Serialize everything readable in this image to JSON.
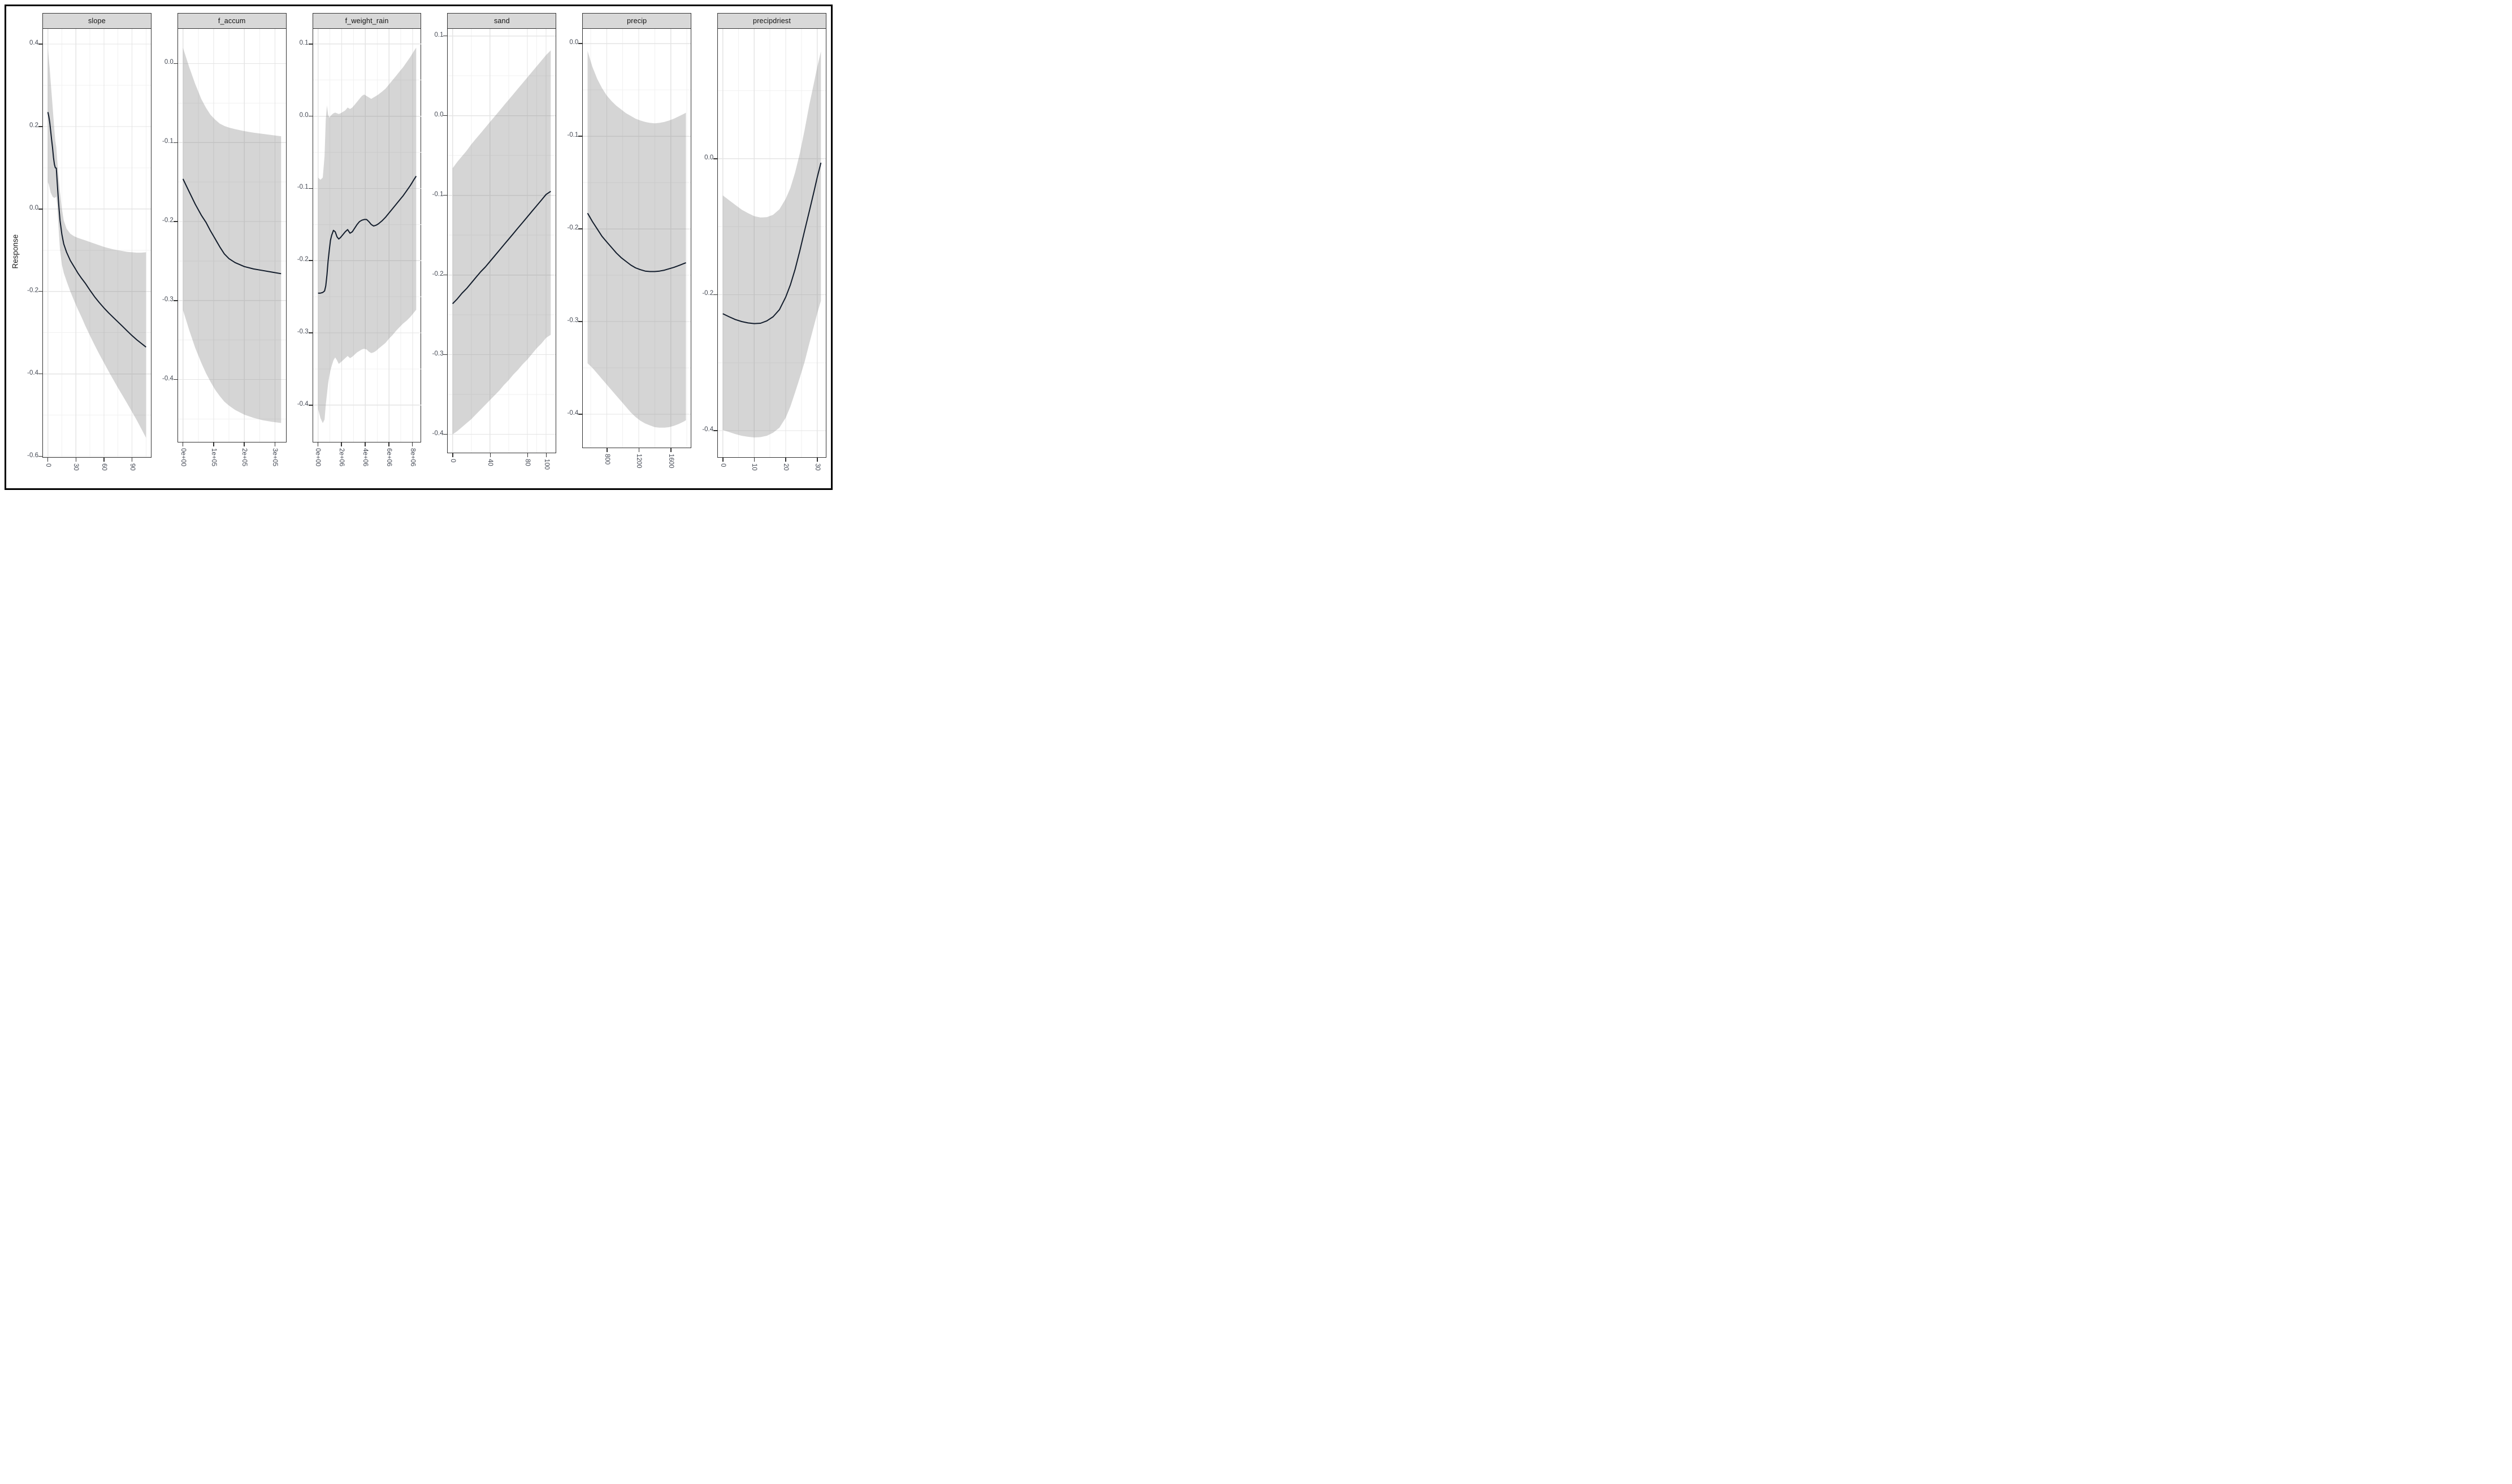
{
  "figure": {
    "ylab": "Response"
  },
  "chart_data": {
    "type": "line",
    "title": "",
    "xlabel": "",
    "ylabel": "Response",
    "legend": "none",
    "grid": "on",
    "style": {
      "line_color": "#121c2b",
      "ribbon_fill": "rgba(128,128,128,0.33)",
      "grid_major": "#e4e4e4",
      "grid_minor": "#f1f1f1",
      "strip_bg": "#d8d8d8",
      "panel_border": "#333333",
      "axis_text": "#454a55",
      "outer_border": "#000000"
    },
    "panels": [
      {
        "label": "slope",
        "xdomain": [
          -5.25,
          110.25
        ],
        "ydomain": [
          -0.602,
          0.437
        ],
        "xticks": {
          "values": [
            0,
            30,
            60,
            90
          ],
          "labels": [
            "0",
            "30",
            "60",
            "90"
          ]
        },
        "xminor": [
          15,
          45,
          75,
          105
        ],
        "yticks": {
          "values": [
            0.4,
            0.2,
            0.0,
            -0.2,
            -0.4,
            -0.6
          ],
          "labels": [
            "0.4",
            "0.2",
            "0.0",
            "-0.2",
            "-0.4",
            "-0.6"
          ]
        },
        "yminor": [
          0.3,
          0.1,
          -0.1,
          -0.3,
          -0.5
        ],
        "series": {
          "x": [
            0,
            1,
            2,
            3,
            4,
            5,
            6,
            7,
            8,
            9,
            10,
            11,
            12,
            13,
            15,
            17,
            20,
            24,
            28,
            32,
            36,
            40,
            45,
            50,
            55,
            60,
            65,
            70,
            75,
            80,
            85,
            90,
            95,
            100,
            105
          ],
          "fit": [
            0.235,
            0.225,
            0.21,
            0.19,
            0.168,
            0.148,
            0.125,
            0.108,
            0.1,
            0.099,
            0.065,
            0.03,
            0,
            -0.028,
            -0.062,
            -0.085,
            -0.105,
            -0.125,
            -0.14,
            -0.155,
            -0.168,
            -0.18,
            -0.197,
            -0.213,
            -0.227,
            -0.24,
            -0.252,
            -0.263,
            -0.274,
            -0.285,
            -0.296,
            -0.307,
            -0.317,
            -0.326,
            -0.335
          ],
          "hi": [
            0.39,
            0.365,
            0.34,
            0.31,
            0.28,
            0.25,
            0.22,
            0.19,
            0.165,
            0.15,
            0.12,
            0.09,
            0.065,
            0.04,
            0,
            -0.028,
            -0.048,
            -0.06,
            -0.066,
            -0.07,
            -0.073,
            -0.076,
            -0.08,
            -0.084,
            -0.088,
            -0.092,
            -0.095,
            -0.098,
            -0.1,
            -0.102,
            -0.104,
            -0.105,
            -0.106,
            -0.106,
            -0.105
          ],
          "lo": [
            0.065,
            0.06,
            0.05,
            0.04,
            0.035,
            0.03,
            0.028,
            0.027,
            0.028,
            0.03,
            0.01,
            -0.03,
            -0.065,
            -0.1,
            -0.135,
            -0.155,
            -0.175,
            -0.2,
            -0.222,
            -0.243,
            -0.262,
            -0.283,
            -0.307,
            -0.33,
            -0.352,
            -0.373,
            -0.394,
            -0.414,
            -0.434,
            -0.453,
            -0.472,
            -0.492,
            -0.512,
            -0.533,
            -0.555
          ]
        }
      },
      {
        "label": "f_accum",
        "xdomain": [
          -16000,
          336000
        ],
        "ydomain": [
          -0.479,
          0.044
        ],
        "xticks": {
          "values": [
            0,
            100000,
            200000,
            300000
          ],
          "labels": [
            "0e+00",
            "1e+05",
            "2e+05",
            "3e+05"
          ]
        },
        "xminor": [
          50000,
          150000,
          250000
        ],
        "yticks": {
          "values": [
            0.0,
            -0.1,
            -0.2,
            -0.3,
            -0.4
          ],
          "labels": [
            "0.0",
            "-0.1",
            "-0.2",
            "-0.3",
            "-0.4"
          ]
        },
        "yminor": [
          -0.05,
          -0.15,
          -0.25,
          -0.35,
          -0.45
        ],
        "series": {
          "x": [
            0,
            20000,
            40000,
            60000,
            75000,
            90000,
            105000,
            120000,
            135000,
            150000,
            170000,
            200000,
            230000,
            260000,
            290000,
            320000
          ],
          "fit": [
            -0.146,
            -0.162,
            -0.178,
            -0.192,
            -0.201,
            -0.212,
            -0.222,
            -0.232,
            -0.241,
            -0.247,
            -0.252,
            -0.257,
            -0.26,
            -0.262,
            -0.264,
            -0.266
          ],
          "hi": [
            0.02,
            -0.004,
            -0.026,
            -0.045,
            -0.056,
            -0.065,
            -0.071,
            -0.076,
            -0.079,
            -0.081,
            -0.083,
            -0.0855,
            -0.0875,
            -0.089,
            -0.0905,
            -0.092
          ],
          "lo": [
            -0.312,
            -0.337,
            -0.36,
            -0.379,
            -0.392,
            -0.403,
            -0.413,
            -0.421,
            -0.428,
            -0.433,
            -0.4385,
            -0.4445,
            -0.4485,
            -0.4515,
            -0.4535,
            -0.455
          ]
        }
      },
      {
        "label": "f_weight_rain",
        "xdomain": [
          -415000,
          8715000
        ],
        "ydomain": [
          -0.451,
          0.121
        ],
        "xticks": {
          "values": [
            0,
            2000000,
            4000000,
            6000000,
            8000000
          ],
          "labels": [
            "0e+00",
            "2e+06",
            "4e+06",
            "6e+06",
            "8e+06"
          ]
        },
        "xminor": [
          1000000,
          3000000,
          5000000,
          7000000
        ],
        "yticks": {
          "values": [
            0.1,
            0.0,
            -0.1,
            -0.2,
            -0.3,
            -0.4
          ],
          "labels": [
            "0.1",
            "0.0",
            "-0.1",
            "-0.2",
            "-0.3",
            "-0.4"
          ]
        },
        "yminor": [
          0.05,
          -0.05,
          -0.15,
          -0.25,
          -0.35
        ],
        "series": {
          "x": [
            0,
            200000,
            400000,
            550000,
            650000,
            750000,
            850000,
            950000,
            1050000,
            1150000,
            1300000,
            1450000,
            1600000,
            1750000,
            1900000,
            2100000,
            2300000,
            2500000,
            2700000,
            2900000,
            3100000,
            3300000,
            3500000,
            3700000,
            3900000,
            4100000,
            4300000,
            4500000,
            4700000,
            4900000,
            5100000,
            5400000,
            5700000,
            6000000,
            6300000,
            6600000,
            6900000,
            7200000,
            7500000,
            7800000,
            8100000,
            8300000
          ],
          "fit": [
            -0.245,
            -0.245,
            -0.244,
            -0.242,
            -0.235,
            -0.22,
            -0.2,
            -0.185,
            -0.172,
            -0.165,
            -0.158,
            -0.16,
            -0.167,
            -0.17,
            -0.168,
            -0.164,
            -0.16,
            -0.157,
            -0.162,
            -0.16,
            -0.155,
            -0.15,
            -0.146,
            -0.144,
            -0.143,
            -0.143,
            -0.146,
            -0.15,
            -0.152,
            -0.151,
            -0.149,
            -0.145,
            -0.14,
            -0.134,
            -0.128,
            -0.122,
            -0.116,
            -0.11,
            -0.103,
            -0.096,
            -0.088,
            -0.083
          ],
          "hi": [
            -0.085,
            -0.088,
            -0.085,
            -0.055,
            -0.005,
            0.015,
            0.002,
            -0.002,
            0,
            0.002,
            0.004,
            0.005,
            0.004,
            0.003,
            0.004,
            0.006,
            0.008,
            0.012,
            0.01,
            0.012,
            0.016,
            0.02,
            0.024,
            0.028,
            0.03,
            0.028,
            0.026,
            0.024,
            0.026,
            0.028,
            0.03,
            0.034,
            0.038,
            0.044,
            0.05,
            0.056,
            0.062,
            0.068,
            0.075,
            0.082,
            0.09,
            0.095
          ],
          "lo": [
            -0.405,
            -0.418,
            -0.425,
            -0.42,
            -0.4,
            -0.385,
            -0.37,
            -0.36,
            -0.352,
            -0.346,
            -0.338,
            -0.334,
            -0.338,
            -0.343,
            -0.341,
            -0.338,
            -0.335,
            -0.332,
            -0.335,
            -0.333,
            -0.33,
            -0.327,
            -0.325,
            -0.323,
            -0.322,
            -0.323,
            -0.326,
            -0.328,
            -0.327,
            -0.325,
            -0.322,
            -0.318,
            -0.314,
            -0.308,
            -0.303,
            -0.297,
            -0.292,
            -0.287,
            -0.283,
            -0.278,
            -0.272,
            -0.268
          ]
        }
      },
      {
        "label": "sand",
        "xdomain": [
          -5.25,
          110.25
        ],
        "ydomain": [
          -0.423,
          0.109
        ],
        "xticks": {
          "values": [
            0,
            40,
            80,
            100
          ],
          "labels": [
            "0",
            "40",
            "80",
            "100"
          ]
        },
        "xminor": [
          20,
          60,
          90
        ],
        "yticks": {
          "values": [
            0.1,
            0.0,
            -0.1,
            -0.2,
            -0.3,
            -0.4
          ],
          "labels": [
            "0.1",
            "0.0",
            "-0.1",
            "-0.2",
            "-0.3",
            "-0.4"
          ]
        },
        "yminor": [
          0.05,
          -0.05,
          -0.15,
          -0.25,
          -0.35
        ],
        "series": {
          "x": [
            0,
            5,
            10,
            15,
            20,
            25,
            30,
            35,
            40,
            45,
            50,
            55,
            60,
            65,
            70,
            75,
            80,
            85,
            90,
            95,
            100,
            105
          ],
          "fit": [
            -0.236,
            -0.23,
            -0.223,
            -0.217,
            -0.21,
            -0.203,
            -0.196,
            -0.19,
            -0.183,
            -0.176,
            -0.169,
            -0.162,
            -0.155,
            -0.148,
            -0.141,
            -0.134,
            -0.127,
            -0.12,
            -0.113,
            -0.106,
            -0.099,
            -0.095
          ],
          "hi": [
            -0.066,
            -0.058,
            -0.051,
            -0.044,
            -0.036,
            -0.029,
            -0.022,
            -0.015,
            -0.008,
            -0.001,
            0.006,
            0.013,
            0.02,
            0.027,
            0.034,
            0.041,
            0.048,
            0.055,
            0.062,
            0.069,
            0.076,
            0.082
          ],
          "lo": [
            -0.4,
            -0.396,
            -0.391,
            -0.386,
            -0.381,
            -0.375,
            -0.369,
            -0.363,
            -0.357,
            -0.351,
            -0.345,
            -0.338,
            -0.332,
            -0.325,
            -0.319,
            -0.312,
            -0.306,
            -0.299,
            -0.292,
            -0.286,
            -0.279,
            -0.275
          ]
        }
      },
      {
        "label": "precip",
        "xdomain": [
          500,
          1850
        ],
        "ydomain": [
          -0.436,
          0.016
        ],
        "xticks": {
          "values": [
            800,
            1200,
            1600
          ],
          "labels": [
            "800",
            "1200",
            "1600"
          ]
        },
        "xminor": [
          600,
          1000,
          1400,
          1800
        ],
        "yticks": {
          "values": [
            0.0,
            -0.1,
            -0.2,
            -0.3,
            -0.4
          ],
          "labels": [
            "0.0",
            "-0.1",
            "-0.2",
            "-0.3",
            "-0.4"
          ]
        },
        "yminor": [
          -0.05,
          -0.15,
          -0.25,
          -0.35
        ],
        "series": {
          "x": [
            560,
            620,
            680,
            740,
            800,
            860,
            920,
            980,
            1040,
            1100,
            1160,
            1220,
            1280,
            1340,
            1400,
            1460,
            1520,
            1580,
            1640,
            1700,
            1760,
            1790
          ],
          "fit": [
            -0.183,
            -0.192,
            -0.2,
            -0.208,
            -0.214,
            -0.22,
            -0.226,
            -0.231,
            -0.235,
            -0.239,
            -0.242,
            -0.244,
            -0.2455,
            -0.246,
            -0.246,
            -0.2455,
            -0.2445,
            -0.243,
            -0.2415,
            -0.2395,
            -0.2375,
            -0.2365
          ],
          "hi": [
            -0.008,
            -0.025,
            -0.038,
            -0.048,
            -0.056,
            -0.062,
            -0.067,
            -0.071,
            -0.075,
            -0.078,
            -0.081,
            -0.083,
            -0.0845,
            -0.0855,
            -0.086,
            -0.0855,
            -0.0845,
            -0.083,
            -0.081,
            -0.0785,
            -0.076,
            -0.0745
          ],
          "lo": [
            -0.345,
            -0.35,
            -0.356,
            -0.362,
            -0.368,
            -0.374,
            -0.38,
            -0.386,
            -0.392,
            -0.398,
            -0.403,
            -0.407,
            -0.41,
            -0.412,
            -0.414,
            -0.4145,
            -0.4145,
            -0.414,
            -0.4125,
            -0.4105,
            -0.408,
            -0.4065
          ]
        }
      },
      {
        "label": "precipdriest",
        "xdomain": [
          -1.56,
          32.76
        ],
        "ydomain": [
          -0.439,
          0.191
        ],
        "xticks": {
          "values": [
            0,
            10,
            20,
            30
          ],
          "labels": [
            "0",
            "10",
            "20",
            "30"
          ]
        },
        "xminor": [
          5,
          15,
          25
        ],
        "yticks": {
          "values": [
            0.0,
            -0.2,
            -0.4
          ],
          "labels": [
            "0.0",
            "-0.2",
            "-0.4"
          ]
        },
        "yminor": [
          0.1,
          -0.1,
          -0.3
        ],
        "series": {
          "x": [
            0,
            2,
            4,
            6,
            8,
            10,
            12,
            14,
            16,
            18,
            20,
            21.5,
            23,
            24.5,
            26,
            27.5,
            29,
            30,
            31.2
          ],
          "fit": [
            -0.228,
            -0.2325,
            -0.2365,
            -0.2395,
            -0.2415,
            -0.2425,
            -0.242,
            -0.2385,
            -0.2325,
            -0.222,
            -0.2035,
            -0.1855,
            -0.1625,
            -0.1355,
            -0.106,
            -0.0775,
            -0.048,
            -0.028,
            -0.006
          ],
          "hi": [
            -0.054,
            -0.061,
            -0.068,
            -0.075,
            -0.08,
            -0.0845,
            -0.0865,
            -0.086,
            -0.0825,
            -0.0745,
            -0.059,
            -0.043,
            -0.02,
            0.008,
            0.042,
            0.079,
            0.112,
            0.134,
            0.158
          ],
          "lo": [
            -0.399,
            -0.402,
            -0.405,
            -0.4075,
            -0.409,
            -0.41,
            -0.4095,
            -0.4075,
            -0.403,
            -0.3955,
            -0.381,
            -0.3645,
            -0.3435,
            -0.322,
            -0.299,
            -0.272,
            -0.2455,
            -0.228,
            -0.209
          ]
        }
      }
    ]
  }
}
